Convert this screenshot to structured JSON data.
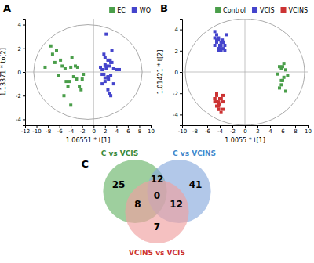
{
  "chart_data": [
    {
      "type": "scatter",
      "title": "A",
      "x_label": "1.06551 * t[1]",
      "y_label": "1.13371 * to[2]",
      "marker": "square",
      "legend": "upper right",
      "ellipse": {
        "cx": -1.0,
        "cy": 0.0,
        "width": 19,
        "height": 8
      },
      "hlines": [
        0
      ],
      "vlines": [
        0
      ],
      "series": [
        {
          "name": "EC",
          "color": "#4a9e4a",
          "x": [
            -8.5,
            -7.2,
            -6.8,
            -6.2,
            -5.8,
            -5.5,
            -5.0,
            -4.8,
            -4.5,
            -4.2,
            -4.0,
            -3.8,
            -3.5,
            -3.2,
            -3.0,
            -2.8,
            -2.5,
            -2.2,
            -2.0,
            -1.8,
            -7.5,
            -6.5,
            -5.2,
            -4.0
          ],
          "values": [
            0.4,
            1.5,
            0.8,
            -0.3,
            1.0,
            0.5,
            0.3,
            -0.8,
            -1.2,
            -0.8,
            0.4,
            1.2,
            -0.4,
            0.5,
            -0.6,
            0.4,
            -1.2,
            -1.5,
            -0.6,
            -0.2,
            2.2,
            1.8,
            -2.0,
            -2.8
          ]
        },
        {
          "name": "WQ",
          "color": "#4444cc",
          "x": [
            1.2,
            1.5,
            1.8,
            2.0,
            2.2,
            2.5,
            2.8,
            3.0,
            3.2,
            3.5,
            2.0,
            2.3,
            2.6,
            2.9,
            1.5,
            2.0,
            2.5,
            3.0,
            3.5,
            4.0,
            2.2,
            2.8,
            1.8,
            2.5,
            3.2,
            4.5,
            1.5,
            2.0,
            2.5,
            3.0
          ],
          "values": [
            0.4,
            0.2,
            -0.2,
            0.6,
            0.3,
            -0.4,
            0.5,
            -0.3,
            0.8,
            0.3,
            -0.8,
            0.5,
            -0.6,
            1.0,
            -0.2,
            1.2,
            -0.5,
            0.8,
            -1.0,
            0.2,
            3.2,
            -1.8,
            1.5,
            -1.5,
            1.8,
            0.2,
            -1.0,
            -0.5,
            1.0,
            -2.0
          ]
        }
      ],
      "xlim": [
        -12,
        10
      ],
      "ylim": [
        -4.5,
        4.5
      ],
      "xticks": [
        -12,
        -10,
        -8,
        -6,
        -4,
        -2,
        0,
        2,
        4,
        6,
        8,
        10
      ],
      "yticks": [
        -4,
        -2,
        0,
        2,
        4
      ]
    },
    {
      "type": "scatter",
      "title": "B",
      "x_label": "1.0055 * t[1]",
      "y_label": "1.01421 * t[2]",
      "marker": "square",
      "legend": "upper right",
      "ellipse": {
        "cx": 0.0,
        "cy": 0.0,
        "width": 19,
        "height": 10
      },
      "hlines": [
        0
      ],
      "vlines": [
        0
      ],
      "series": [
        {
          "name": "Control",
          "color": "#4a9e4a",
          "x": [
            5.2,
            5.8,
            6.2,
            5.5,
            6.0,
            6.5,
            5.8,
            6.2,
            6.8,
            5.5,
            6.0,
            5.8,
            6.5
          ],
          "values": [
            -0.2,
            0.3,
            -0.5,
            0.5,
            -0.8,
            0.2,
            -1.2,
            0.8,
            -0.3,
            -1.5,
            0.5,
            -0.8,
            -1.8
          ]
        },
        {
          "name": "VCIS",
          "color": "#4444cc",
          "x": [
            -3.2,
            -3.5,
            -4.0,
            -4.5,
            -3.8,
            -4.2,
            -3.5,
            -4.8,
            -4.0,
            -3.2,
            -4.5,
            -3.8,
            -4.2,
            -3.6,
            -4.8,
            -3.0,
            -4.5,
            -3.8,
            -4.2,
            -4.0,
            -3.5,
            -4.8,
            -4.0,
            -3.5,
            -4.2
          ],
          "values": [
            2.5,
            2.8,
            2.2,
            3.0,
            2.5,
            2.0,
            2.8,
            3.2,
            2.5,
            2.0,
            3.5,
            2.8,
            2.2,
            3.0,
            2.5,
            3.5,
            2.8,
            2.0,
            3.0,
            2.5,
            2.2,
            3.8,
            2.5,
            2.8,
            3.2
          ]
        },
        {
          "name": "VCINS",
          "color": "#cc3333",
          "x": [
            -3.8,
            -4.2,
            -4.5,
            -3.8,
            -4.5,
            -4.2,
            -3.5,
            -4.8,
            -4.0,
            -3.5,
            -4.2,
            -4.5,
            -4.8,
            -3.8,
            -4.2,
            -4.5,
            -3.5,
            -4.8,
            -4.0,
            -4.2
          ],
          "values": [
            -2.5,
            -2.8,
            -3.2,
            -2.5,
            -2.0,
            -3.5,
            -2.8,
            -2.5,
            -3.0,
            -2.2,
            -3.5,
            -2.8,
            -2.5,
            -3.8,
            -3.0,
            -2.2,
            -3.5,
            -2.8,
            -2.5,
            -3.2
          ]
        }
      ],
      "xlim": [
        -10,
        10
      ],
      "ylim": [
        -5,
        5
      ],
      "xticks": [
        -10,
        -8,
        -6,
        -4,
        -2,
        0,
        2,
        4,
        6,
        8,
        10
      ],
      "yticks": [
        -4,
        -2,
        0,
        2,
        4
      ]
    },
    {
      "type": "venn",
      "title": "C",
      "sets": [
        {
          "name": "C vs VCIS",
          "color": "#6ab56a",
          "label_color": "#3a8a3a"
        },
        {
          "name": "C vs VCINS",
          "color": "#88aadd",
          "label_color": "#4488cc"
        },
        {
          "name": "VCINS vs VCIS",
          "color": "#f0a0a0",
          "label_color": "#cc3333"
        }
      ],
      "regions": [
        {
          "sets": [
            "C vs VCIS"
          ],
          "value": 25
        },
        {
          "sets": [
            "C vs VCINS"
          ],
          "value": 41
        },
        {
          "sets": [
            "VCINS vs VCIS"
          ],
          "value": 7
        },
        {
          "sets": [
            "C vs VCIS",
            "C vs VCINS"
          ],
          "value": 12
        },
        {
          "sets": [
            "C vs VCIS",
            "VCINS vs VCIS"
          ],
          "value": 8
        },
        {
          "sets": [
            "C vs VCINS",
            "VCINS vs VCIS"
          ],
          "value": 12
        },
        {
          "sets": [
            "C vs VCIS",
            "C vs VCINS",
            "VCINS vs VCIS"
          ],
          "value": 0
        }
      ]
    }
  ]
}
